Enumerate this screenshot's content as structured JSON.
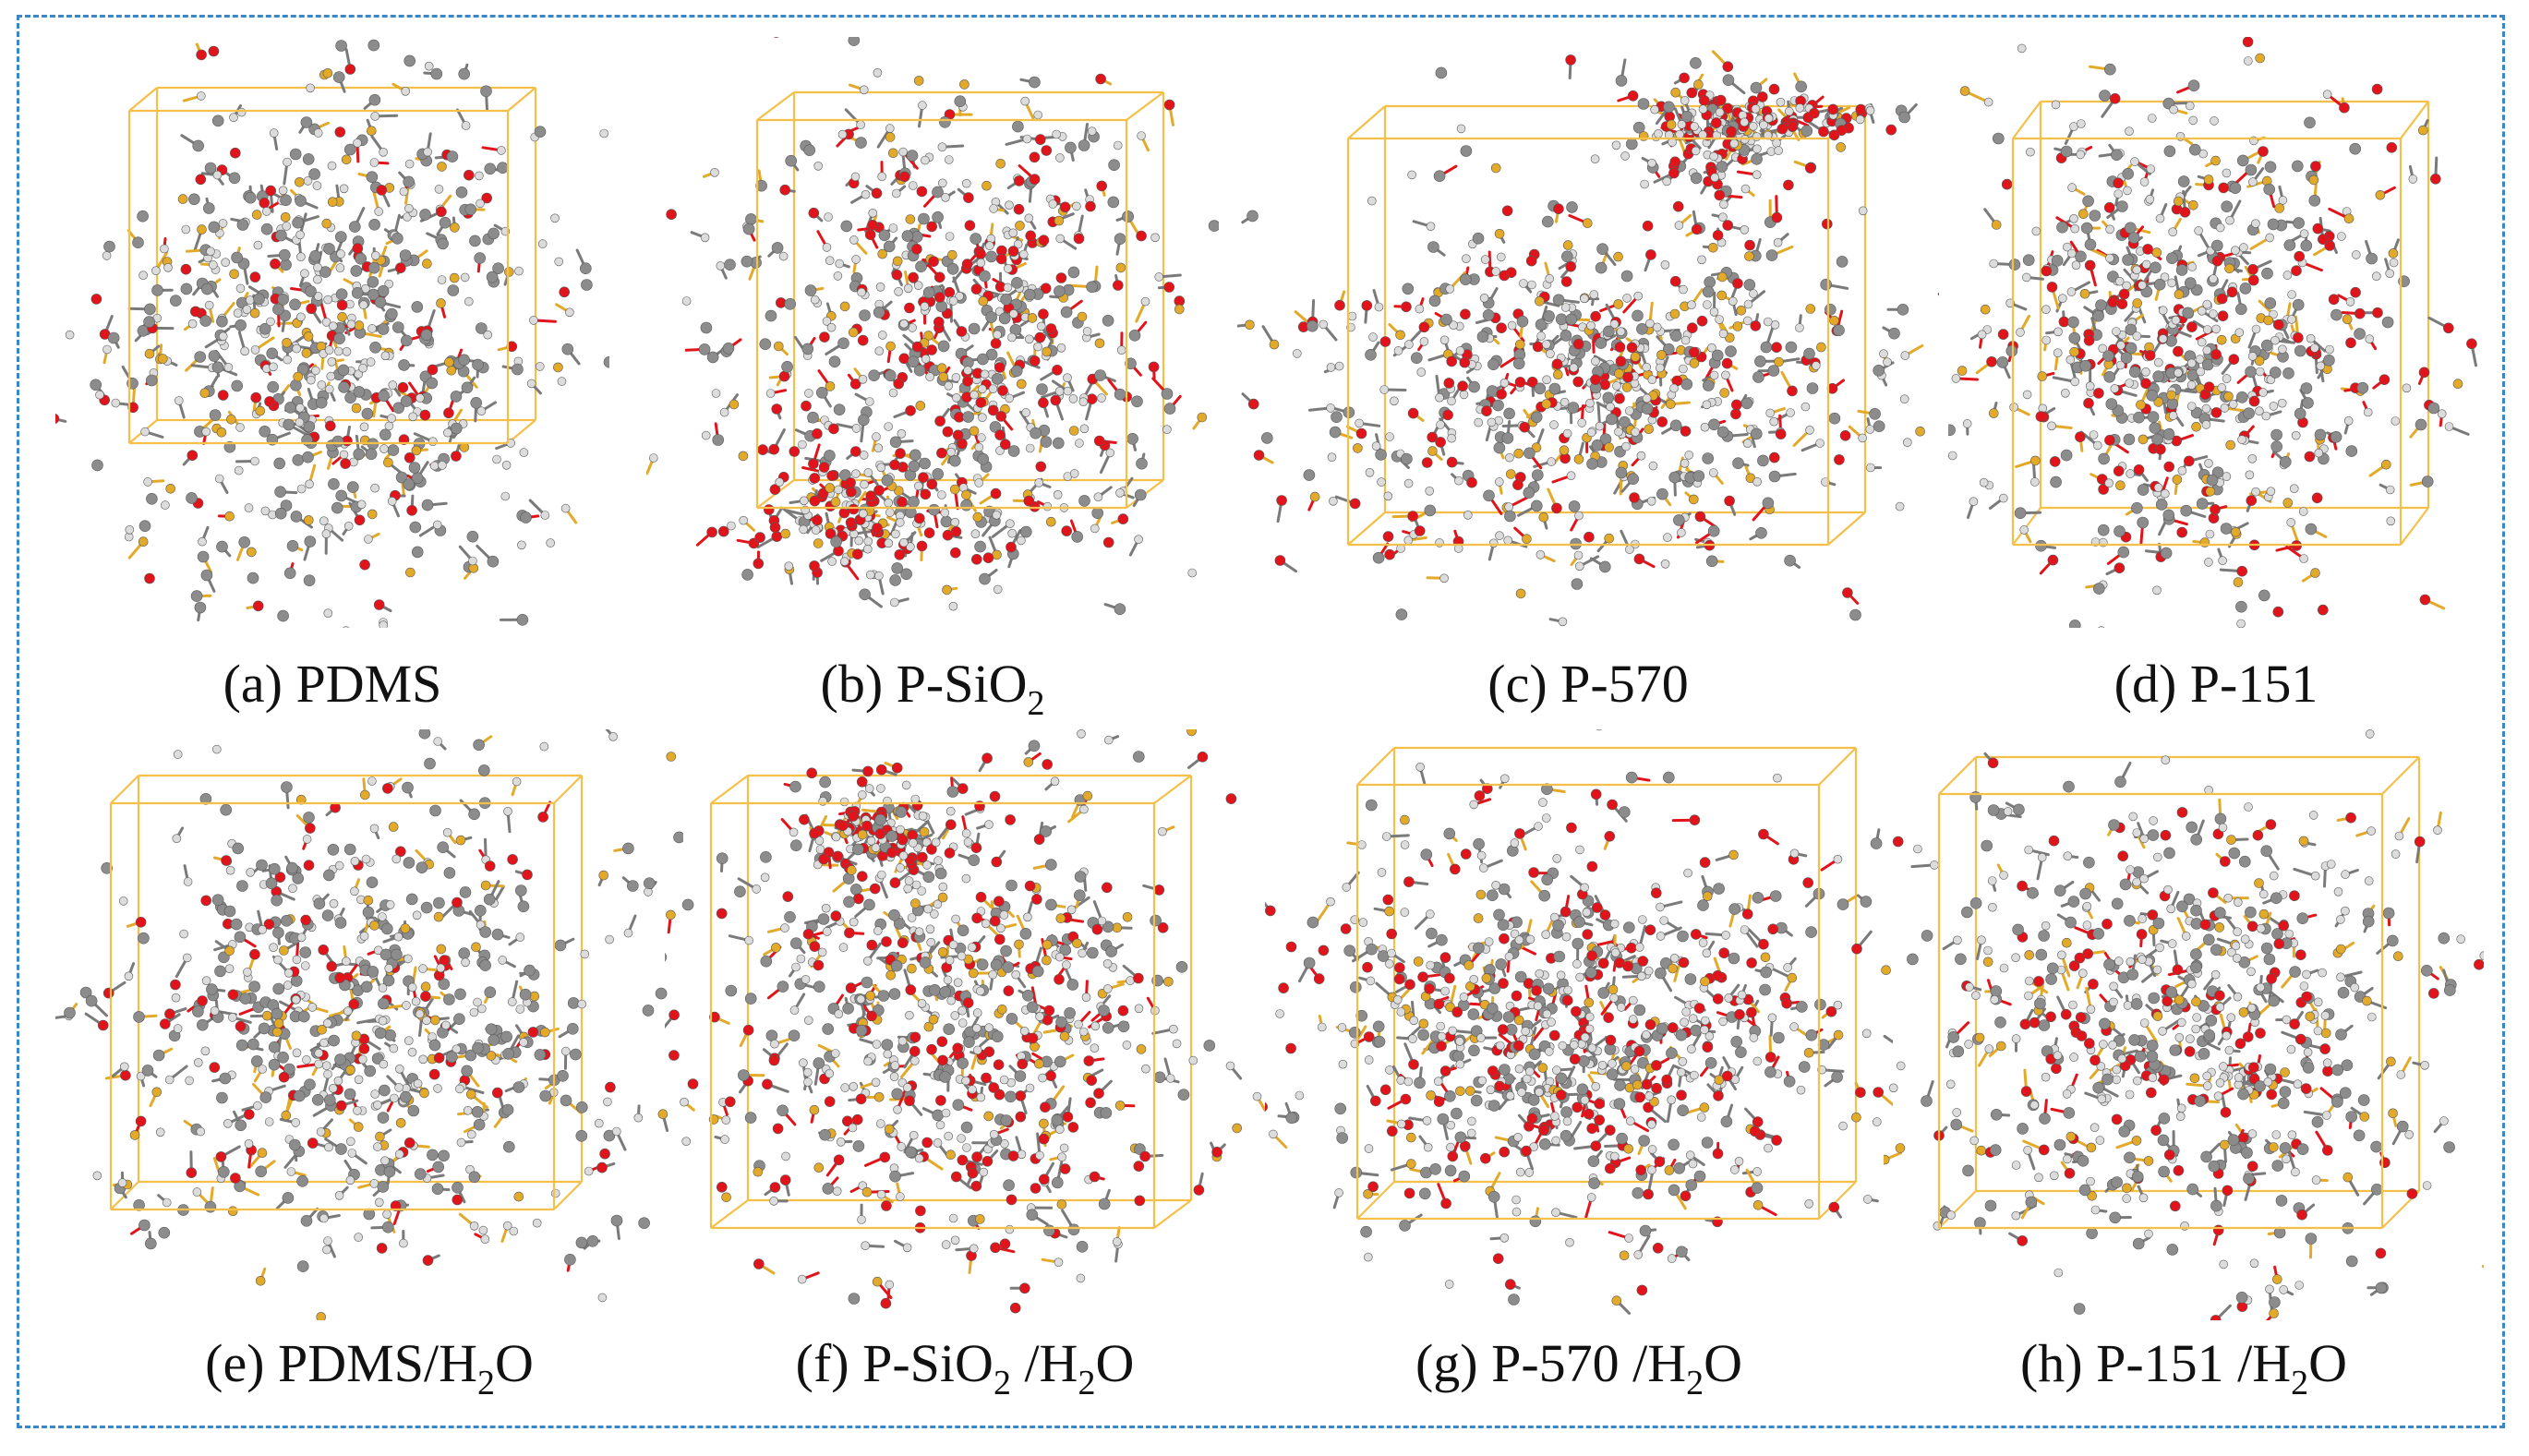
{
  "figure": {
    "colors": {
      "border": "#3a86c6",
      "box_edge": "#f5c04a",
      "carbon": "#8c8c8c",
      "hydrogen": "#dcdcdc",
      "oxygen": "#e0141a",
      "silicon": "#e3aa2a",
      "caption_text": "#111111"
    },
    "panels": [
      {
        "id": "a",
        "label": "(a) PDMS",
        "parts": [
          {
            "t": "(a) PDMS"
          }
        ],
        "oxygen_level": 0.12
      },
      {
        "id": "b",
        "label": "(b) P-SiO2",
        "parts": [
          {
            "t": "(b) P-SiO"
          },
          {
            "t": "2",
            "sub": true
          }
        ],
        "oxygen_level": 0.22
      },
      {
        "id": "c",
        "label": "(c) P-570",
        "parts": [
          {
            "t": "(c) P-570"
          }
        ],
        "oxygen_level": 0.2
      },
      {
        "id": "d",
        "label": "(d) P-151",
        "parts": [
          {
            "t": "(d) P-151"
          }
        ],
        "oxygen_level": 0.2
      },
      {
        "id": "e",
        "label": "(e) PDMS/H2O",
        "parts": [
          {
            "t": "(e) PDMS/H"
          },
          {
            "t": "2",
            "sub": true
          },
          {
            "t": "O"
          }
        ],
        "oxygen_level": 0.14
      },
      {
        "id": "f",
        "label": "(f) P-SiO2 /H2O",
        "parts": [
          {
            "t": "(f) P-SiO"
          },
          {
            "t": "2",
            "sub": true
          },
          {
            "t": " /H"
          },
          {
            "t": "2",
            "sub": true
          },
          {
            "t": "O"
          }
        ],
        "oxygen_level": 0.24
      },
      {
        "id": "g",
        "label": "(g) P-570 /H2O",
        "parts": [
          {
            "t": "(g) P-570 /H"
          },
          {
            "t": "2",
            "sub": true
          },
          {
            "t": "O"
          }
        ],
        "oxygen_level": 0.24
      },
      {
        "id": "h",
        "label": "(h) P-151 /H2O",
        "parts": [
          {
            "t": "(h) P-151 /H"
          },
          {
            "t": "2",
            "sub": true
          },
          {
            "t": "O"
          }
        ],
        "oxygen_level": 0.18
      }
    ]
  }
}
